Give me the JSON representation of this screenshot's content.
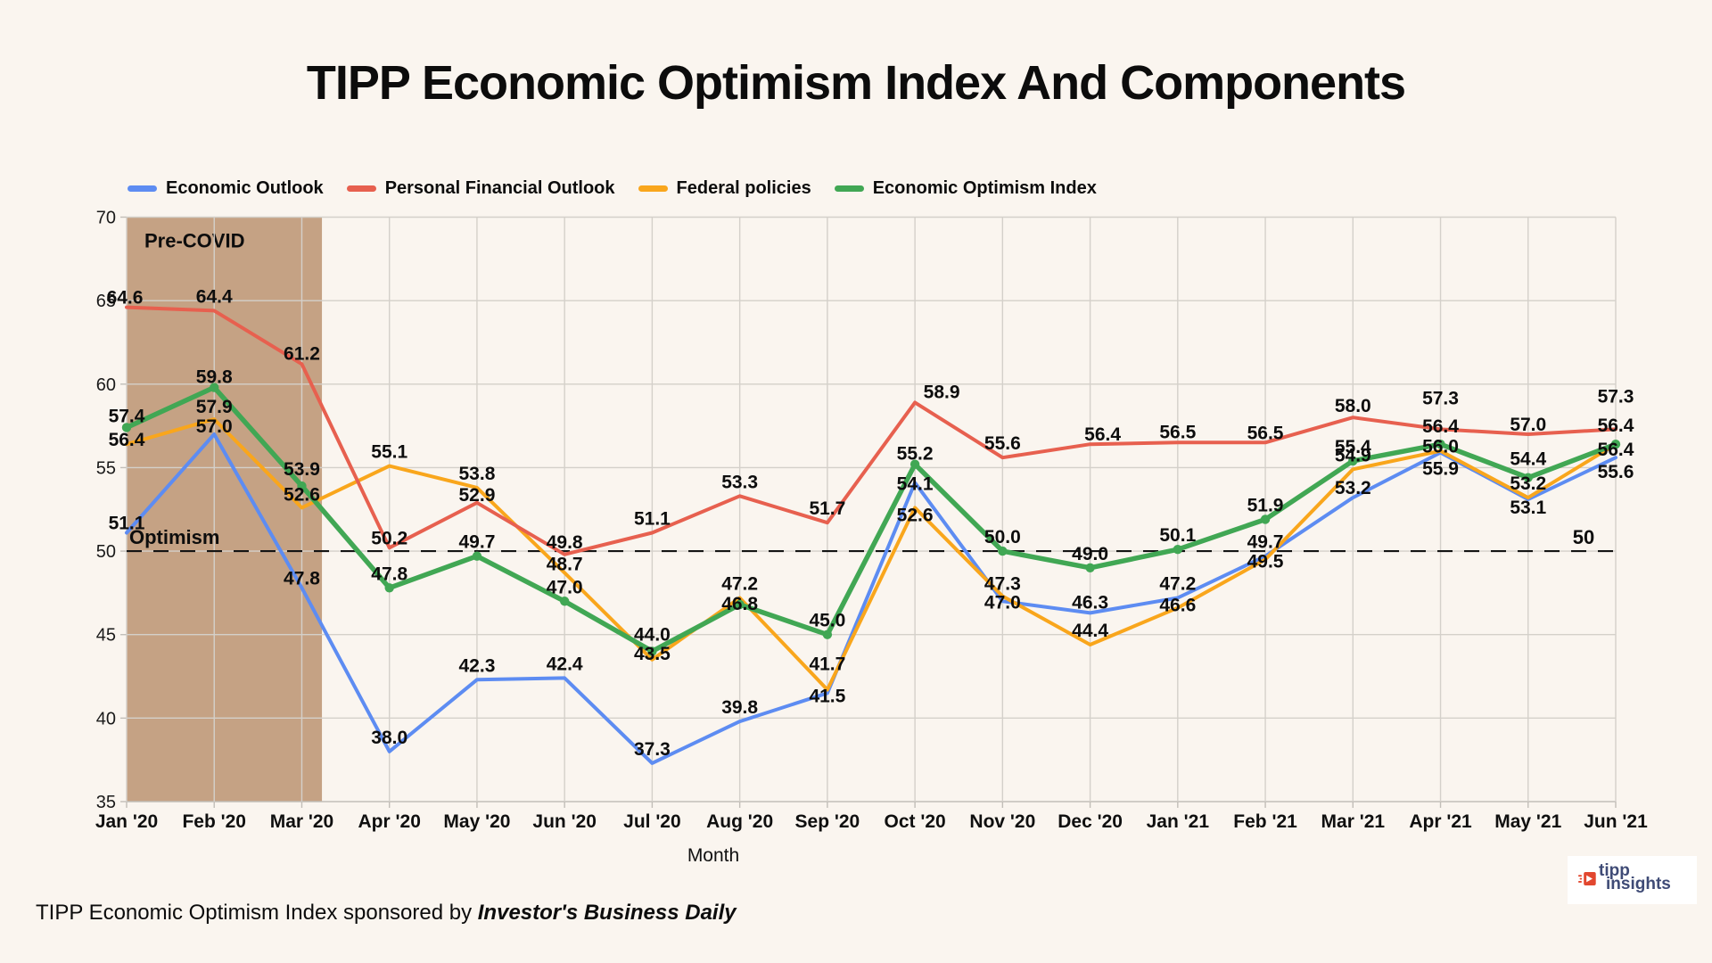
{
  "title": "TIPP Economic Optimism Index And Components",
  "legend": [
    {
      "label": "Economic Outlook",
      "color": "#5d8cf2"
    },
    {
      "label": "Personal Financial Outlook",
      "color": "#e7604f"
    },
    {
      "label": "Federal policies",
      "color": "#f9a61c"
    },
    {
      "label": "Economic Optimism Index",
      "color": "#41a754"
    }
  ],
  "chart_data": {
    "type": "line",
    "title": "TIPP Economic Optimism Index And Components",
    "xlabel": "Month",
    "ylabel": "",
    "ylim": [
      35,
      70
    ],
    "ytick_step": 5,
    "grid": true,
    "legend_position": "top",
    "categories": [
      "Jan '20",
      "Feb '20",
      "Mar '20",
      "Apr '20",
      "May '20",
      "Jun '20",
      "Jul '20",
      "Aug '20",
      "Sep '20",
      "Oct '20",
      "Nov '20",
      "Dec '20",
      "Jan '21",
      "Feb '21",
      "Mar '21",
      "Apr '21",
      "May '21",
      "Jun '21"
    ],
    "series": [
      {
        "name": "Economic Outlook",
        "color": "#5d8cf2",
        "values": [
          51.1,
          57.0,
          47.8,
          38.0,
          42.3,
          42.4,
          37.3,
          39.8,
          41.5,
          54.1,
          47.0,
          46.3,
          47.2,
          49.7,
          53.2,
          55.9,
          53.1,
          55.6
        ]
      },
      {
        "name": "Personal Financial Outlook",
        "color": "#e7604f",
        "values": [
          64.6,
          64.4,
          61.2,
          50.2,
          52.9,
          49.8,
          51.1,
          53.3,
          51.7,
          58.9,
          55.6,
          56.4,
          56.5,
          56.5,
          58.0,
          57.3,
          57.0,
          57.3
        ]
      },
      {
        "name": "Federal policies",
        "color": "#f9a61c",
        "values": [
          56.4,
          57.9,
          52.6,
          55.1,
          53.8,
          48.7,
          43.5,
          47.2,
          41.7,
          52.6,
          47.3,
          44.4,
          46.6,
          49.5,
          54.9,
          56.0,
          53.2,
          56.4
        ]
      },
      {
        "name": "Economic Optimism Index",
        "color": "#41a754",
        "markers": true,
        "values": [
          57.4,
          59.8,
          53.9,
          47.8,
          49.7,
          47.0,
          44.0,
          46.8,
          45.0,
          55.2,
          50.0,
          49.0,
          50.1,
          51.9,
          55.4,
          56.4,
          54.4,
          56.4
        ]
      }
    ],
    "annotations": {
      "precovid_band": {
        "label": "Pre-COVID",
        "start_index": 0,
        "end_index": 2.23,
        "color": "#c5a284"
      },
      "threshold_line": {
        "value": 50,
        "style": "dashed",
        "left_label": "Optimism",
        "right_label": "50"
      }
    }
  },
  "footer": {
    "text": "TIPP Economic Optimism Index sponsored by ",
    "emphasis": "Investor's Business Daily"
  },
  "logo": {
    "line1": "tipp",
    "line2": "insights"
  },
  "colors": {
    "background": "#faf5ef",
    "band": "#c5a284",
    "grid": "#d4d0ca",
    "axis": "#c2beb8",
    "text": "#111111"
  }
}
